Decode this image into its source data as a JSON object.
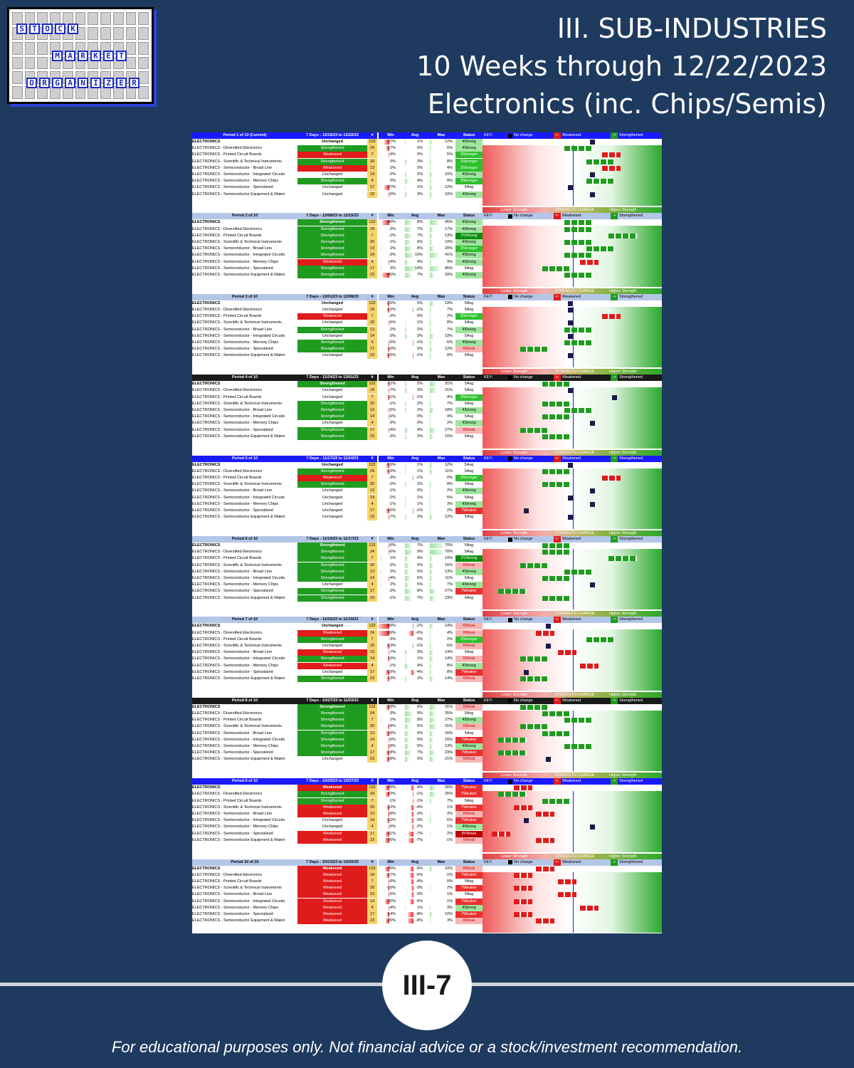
{
  "logo": {
    "words": [
      "STOCK",
      "MARKET",
      "ORGANIZER"
    ]
  },
  "title": {
    "line1": "III. SUB-INDUSTRIES",
    "line2": "10 Weeks through 12/22/2023",
    "line3": "Electronics (inc. Chips/Semis)"
  },
  "columns": [
    "#",
    "Min",
    "Avg",
    "Max",
    "Status"
  ],
  "key": {
    "label": "KEY:",
    "no_change": "No change",
    "weakened": "Weakened",
    "strengthened": "Strengthened"
  },
  "strength_labels": {
    "lower": "Lower Strength",
    "change": "STRENGTH CHANGE",
    "higher": "Higher Strength"
  },
  "names": [
    "ELECTRONICS",
    "ELECTRONICS - Diversified Electronics",
    "ELECTRONICS - Printed Circuit Boards",
    "ELECTRONICS - Scientific & Technical Instruments",
    "ELECTRONICS - Semiconductor - Broad Line",
    "ELECTRONICS - Semiconductor - Integrated Circuits",
    "ELECTRONICS - Semiconductor - Memory Chips",
    "ELECTRONICS - Semiconductor - Specialized",
    "ELECTRONICS - Semiconductor Equipment & Materi"
  ],
  "counts": [
    "122",
    "24",
    "7",
    "20",
    "13",
    "14",
    "4",
    "17",
    "23"
  ],
  "colors": {
    "green": "#1f9c1f",
    "red": "#e01b1b",
    "blue": "#1a1aff",
    "dark": "#1a1a1a"
  },
  "periods": [
    {
      "label": "Period 1 of 10 (Current)",
      "days": "7 Days - 12/15/23 to 12/22/23",
      "hdr": "blue",
      "rows": [
        [
          "Unchanged",
          "-27%",
          "1%",
          "12%",
          "4Strong"
        ],
        [
          "Strengthened",
          "-17%",
          "0%",
          "6%",
          "4Strong"
        ],
        [
          "Weakened",
          "-4%",
          "0%",
          "5%",
          "3Stronger"
        ],
        [
          "Strengthened",
          "0%",
          "3%",
          "8%",
          "3Stronger"
        ],
        [
          "Weakened",
          "-2%",
          "0%",
          "4%",
          "3Stronger"
        ],
        [
          "Unchanged",
          "-2%",
          "2%",
          "10%",
          "4Strong"
        ],
        [
          "Strengthened",
          "0%",
          "4%",
          "8%",
          "3Stronger"
        ],
        [
          "Unchanged",
          "-27%",
          "1%",
          "12%",
          "5Avg"
        ],
        [
          "Unchanged",
          "-6%",
          "3%",
          "10%",
          "4Strong"
        ]
      ]
    },
    {
      "label": "Period 2 of 10",
      "days": "7 Days - 12/08/23 to 12/15/23",
      "hdr": "gray",
      "rows": [
        [
          "Strengthened",
          "-40%",
          "8%",
          "45%",
          "4Strong"
        ],
        [
          "Strengthened",
          "-2%",
          "7%",
          "17%",
          "4Strong"
        ],
        [
          "Strengthened",
          "-2%",
          "7%",
          "13%",
          "2VStrong"
        ],
        [
          "Strengthened",
          "-1%",
          "6%",
          "10%",
          "4Strong"
        ],
        [
          "Strengthened",
          "2%",
          "8%",
          "20%",
          "3Stronger"
        ],
        [
          "Strengthened",
          "-3%",
          "10%",
          "41%",
          "4Strong"
        ],
        [
          "Weakened",
          "-4%",
          "4%",
          "9%",
          "4Strong"
        ],
        [
          "Strengthened",
          "3%",
          "14%",
          "45%",
          "5Avg"
        ],
        [
          "Strengthened",
          "-40%",
          "7%",
          "20%",
          "4Strong"
        ]
      ]
    },
    {
      "label": "Period 3 of 10",
      "days": "7 Days - 12/01/23 to 12/08/23",
      "hdr": "gray",
      "rows": [
        [
          "Unchanged",
          "-15%",
          "0%",
          "19%",
          "5Avg"
        ],
        [
          "Unchanged",
          "-12%",
          "-1%",
          "7%",
          "5Avg"
        ],
        [
          "Weakened",
          "-2%",
          "0%",
          "2%",
          "3Stronger"
        ],
        [
          "Unchanged",
          "-5%",
          "1%",
          "8%",
          "5Avg"
        ],
        [
          "Strengthened",
          "-2%",
          "2%",
          "7%",
          "4Strong"
        ],
        [
          "Unchanged",
          "-3%",
          "3%",
          "19%",
          "5Avg"
        ],
        [
          "Strengthened",
          "-5%",
          "-1%",
          "6%",
          "4Strong"
        ],
        [
          "Strengthened",
          "-10%",
          "0%",
          "12%",
          "6Weak"
        ],
        [
          "Unchanged",
          "-15%",
          "-1%",
          "8%",
          "5Avg"
        ]
      ]
    },
    {
      "label": "Period 4 of 10",
      "days": "7 Days - 11/24/23 to 12/01/23",
      "hdr": "dark",
      "rows": [
        [
          "Strengthened",
          "-11%",
          "2%",
          "31%",
          "5Avg"
        ],
        [
          "Unchanged",
          "-7%",
          "3%",
          "31%",
          "5Avg"
        ],
        [
          "Unchanged",
          "-11%",
          "-1%",
          "4%",
          "3Stronger"
        ],
        [
          "Strengthened",
          "-1%",
          "2%",
          "7%",
          "5Avg"
        ],
        [
          "Strengthened",
          "-5%",
          "2%",
          "18%",
          "4Strong"
        ],
        [
          "Strengthened",
          "-6%",
          "0%",
          "4%",
          "5Avg"
        ],
        [
          "Unchanged",
          "-3%",
          "0%",
          "2%",
          "4Strong"
        ],
        [
          "Strengthened",
          "-4%",
          "4%",
          "27%",
          "6Weak"
        ],
        [
          "Strengthened",
          "-3%",
          "2%",
          "16%",
          "5Avg"
        ]
      ]
    },
    {
      "label": "Period 5 of 10",
      "days": "7 Days - 11/17/23 to 11/24/23",
      "hdr": "blue",
      "rows": [
        [
          "Unchanged",
          "-16%",
          "1%",
          "12%",
          "5Avg"
        ],
        [
          "Strengthened",
          "-13%",
          "1%",
          "11%",
          "5Avg"
        ],
        [
          "Weakened",
          "-3%",
          "-1%",
          "0%",
          "3Stronger"
        ],
        [
          "Strengthened",
          "-2%",
          "2%",
          "8%",
          "5Avg"
        ],
        [
          "Unchanged",
          "-1%",
          "0%",
          "2%",
          "4Strong"
        ],
        [
          "Unchanged",
          "-2%",
          "1%",
          "5%",
          "5Avg"
        ],
        [
          "Unchanged",
          "-1%",
          "1%",
          "3%",
          "4Strong"
        ],
        [
          "Unchanged",
          "-16%",
          "-1%",
          "2%",
          "7Weaker"
        ],
        [
          "Unchanged",
          "-7%",
          "2%",
          "12%",
          "5Avg"
        ]
      ]
    },
    {
      "label": "Period 6 of 10",
      "days": "7 Days - 11/10/23 to 11/17/23",
      "hdr": "gray",
      "rows": [
        [
          "Strengthened",
          "-6%",
          "7%",
          "70%",
          "5Avg"
        ],
        [
          "Strengthened",
          "-6%",
          "9%",
          "70%",
          "5Avg"
        ],
        [
          "Strengthened",
          "1%",
          "4%",
          "10%",
          "2VStrong"
        ],
        [
          "Strengthened",
          "-2%",
          "5%",
          "15%",
          "6Weak"
        ],
        [
          "Strengthened",
          "2%",
          "5%",
          "13%",
          "4Strong"
        ],
        [
          "Strengthened",
          "-4%",
          "6%",
          "11%",
          "5Avg"
        ],
        [
          "Unchanged",
          "2%",
          "5%",
          "7%",
          "4Strong"
        ],
        [
          "Strengthened",
          "-3%",
          "8%",
          "27%",
          "7Weaker"
        ],
        [
          "Strengthened",
          "-1%",
          "7%",
          "23%",
          "5Avg"
        ]
      ]
    },
    {
      "label": "Period 7 of 10",
      "days": "7 Days - 11/03/23 to 11/10/23",
      "hdr": "gray",
      "rows": [
        [
          "Unchanged",
          "-59%",
          "-1%",
          "14%",
          "6Weak"
        ],
        [
          "Weakened",
          "-59%",
          "-6%",
          "4%",
          "6Weak"
        ],
        [
          "Strengthened",
          "-3%",
          "0%",
          "2%",
          "3Stronger"
        ],
        [
          "Unchanged",
          "-13%",
          "-1%",
          "6%",
          "6Weak"
        ],
        [
          "Weakened",
          "-7%",
          "3%",
          "14%",
          "5Avg"
        ],
        [
          "Strengthened",
          "-10%",
          "1%",
          "14%",
          "6Weak"
        ],
        [
          "Weakened",
          "-1%",
          "4%",
          "8%",
          "4Strong"
        ],
        [
          "Unchanged",
          "-19%",
          "-4%",
          "8%",
          "7Weaker"
        ],
        [
          "Strengthened",
          "-13%",
          "2%",
          "14%",
          "6Weak"
        ]
      ]
    },
    {
      "label": "Period 8 of 10",
      "days": "7 Days - 10/27/23 to 11/03/23",
      "hdr": "dark",
      "rows": [
        [
          "Strengthened",
          "-18%",
          "6%",
          "31%",
          "6Weak"
        ],
        [
          "Strengthened",
          "-3%",
          "9%",
          "25%",
          "5Avg"
        ],
        [
          "Strengthened",
          "2%",
          "8%",
          "27%",
          "4Strong"
        ],
        [
          "Strengthened",
          "-8%",
          "5%",
          "31%",
          "6Weak"
        ],
        [
          "Strengthened",
          "-18%",
          "5%",
          "16%",
          "5Avg"
        ],
        [
          "Strengthened",
          "-6%",
          "5%",
          "15%",
          "7Weaker"
        ],
        [
          "Strengthened",
          "-8%",
          "5%",
          "13%",
          "4Strong"
        ],
        [
          "Strengthened",
          "-18%",
          "7%",
          "23%",
          "7Weaker"
        ],
        [
          "Unchanged",
          "-18%",
          "5%",
          "21%",
          "6Weak"
        ]
      ]
    },
    {
      "label": "Period 9 of 10",
      "days": "7 Days - 10/20/23 to 10/27/23",
      "hdr": "blue",
      "rows": [
        [
          "Weakened",
          "-26%",
          "-4%",
          "26%",
          "7Weaker"
        ],
        [
          "Strengthened",
          "-22%",
          "-1%",
          "26%",
          "7Weaker"
        ],
        [
          "Strengthened",
          "-1%",
          "-1%",
          "7%",
          "5Avg"
        ],
        [
          "Weakened",
          "-12%",
          "-4%",
          "1%",
          "7Weaker"
        ],
        [
          "Weakened",
          "-8%",
          "-3%",
          "2%",
          "6Weak"
        ],
        [
          "Unchanged",
          "-12%",
          "-3%",
          "6%",
          "7Weaker"
        ],
        [
          "Unchanged",
          "-6%",
          "-2%",
          "1%",
          "4Strong"
        ],
        [
          "Weakened",
          "-21%",
          "-7%",
          "2%",
          "8VWeak"
        ],
        [
          "Weakened",
          "-26%",
          "-7%",
          "-1%",
          "6Weak"
        ]
      ]
    },
    {
      "label": "Period 10 of 10",
      "days": "7 Days - 10/13/23 to 10/20/23",
      "hdr": "gray",
      "rows": [
        [
          "Weakened",
          "-25%",
          "-5%",
          "10%",
          "6Weak"
        ],
        [
          "Weakened",
          "-17%",
          "-5%",
          "-1%",
          "7Weaker"
        ],
        [
          "Weakened",
          "-6%",
          "-4%",
          "0%",
          "5Avg"
        ],
        [
          "Weakened",
          "-10%",
          "-3%",
          "2%",
          "7Weaker"
        ],
        [
          "Weakened",
          "-5%",
          "-3%",
          "1%",
          "5Avg"
        ],
        [
          "Weakened",
          "-25%",
          "-5%",
          "1%",
          "7Weaker"
        ],
        [
          "Weakened",
          "-4%",
          "1%",
          "3%",
          "4Strong"
        ],
        [
          "Weakened",
          "-14%",
          "-8%",
          "10%",
          "7Weaker"
        ],
        [
          "Weakened",
          "-20%",
          "-8%",
          "3%",
          "6Weak"
        ]
      ]
    }
  ],
  "page_badge": "III-7",
  "disclaimer": "For educational purposes only. Not financial advice or a stock/investment recommendation."
}
